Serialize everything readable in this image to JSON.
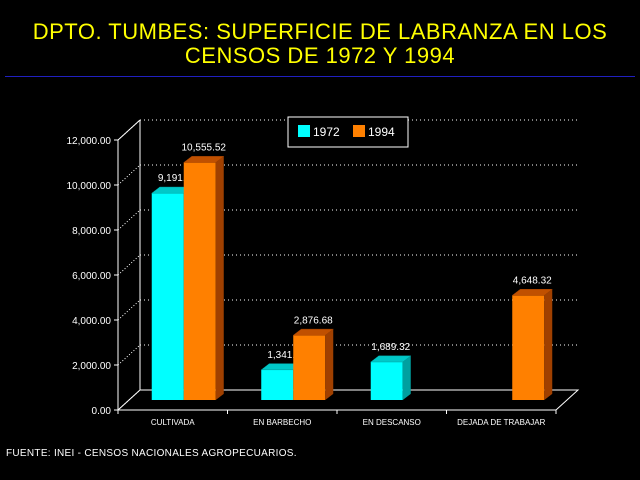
{
  "title": {
    "line1": "DPTO. TUMBES: SUPERFICIE DE LABRANZA EN LOS",
    "line2": "CENSOS DE 1972 Y 1994"
  },
  "source": "FUENTE: INEI - CENSOS NACIONALES AGROPECUARIOS.",
  "colors": {
    "series_1972": "#00ffff",
    "series_1994": "#ff8000",
    "title": "#ffff00",
    "background": "#000000",
    "axis": "#ffffff"
  },
  "chart_data": {
    "type": "bar",
    "title": "DPTO. TUMBES: SUPERFICIE DE LABRANZA EN LOS CENSOS DE 1972 Y 1994",
    "categories": [
      "CULTIVADA",
      "EN BARBECHO",
      "EN DESCANSO",
      "DEJADA DE TRABAJAR"
    ],
    "series": [
      {
        "name": "1972",
        "values": [
          9191,
          1341,
          1689.32,
          null
        ],
        "labels": [
          "9,191.",
          "1,341.",
          "1,689.32",
          ""
        ]
      },
      {
        "name": "1994",
        "values": [
          10555.52,
          2876.68,
          null,
          4648.32
        ],
        "labels": [
          "10,555.52",
          "2,876.68",
          "",
          "4,648.32"
        ]
      }
    ],
    "yticks": [
      "0.00",
      "2,000.00",
      "4,000.00",
      "6,000.00",
      "8,000.00",
      "10,000.00",
      "12,000.00"
    ],
    "ylim": [
      0,
      12000
    ],
    "xlabel": "",
    "ylabel": "",
    "legend": "top-center",
    "grid": true,
    "style": "3d"
  }
}
